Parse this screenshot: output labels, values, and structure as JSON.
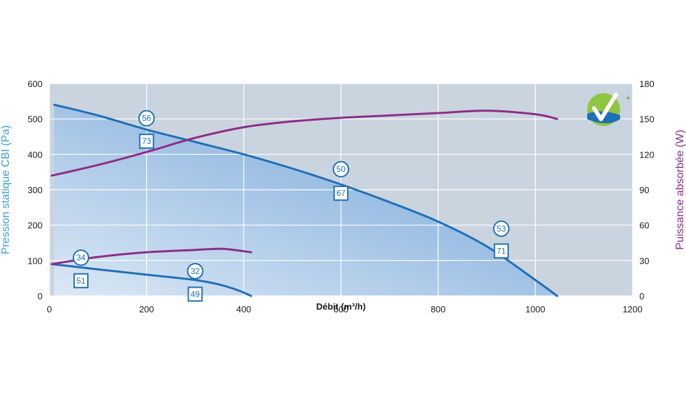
{
  "colors": {
    "pressure_axis": "#3a9fd6",
    "power_axis": "#8e2b86",
    "pressure_curve": "#1f6fb5",
    "power_curve": "#8e2b86",
    "fill_light": "#dbe8f5",
    "fill_dark": "#6b9fd6",
    "grid": "#ffffff",
    "badge": "#1f6fb5",
    "logo_green": "#5aa83a",
    "logo_blue": "#1f6fb5"
  },
  "icons": {
    "logo": "green-check-certification-logo"
  },
  "chart_data": {
    "type": "line",
    "xlabel": "Débit (m³/h)",
    "ylabel_left": "Pression statique CBI (Pa)",
    "ylabel_right": "Puissance absorbée (W)",
    "xlim": [
      0,
      1200
    ],
    "ylim_left": [
      0,
      600
    ],
    "ylim_right": [
      0,
      180
    ],
    "x_ticks": [
      "0",
      "200",
      "400",
      "600",
      "800",
      "1000",
      "1200"
    ],
    "y_left_ticks": [
      "0",
      "100",
      "200",
      "300",
      "400",
      "500",
      "600"
    ],
    "y_right_ticks": [
      "0",
      "30",
      "60",
      "90",
      "120",
      "150",
      "180"
    ],
    "grid": true,
    "series": [
      {
        "axis": "left",
        "kind": "pressure",
        "points": [
          [
            10,
            540
          ],
          [
            100,
            510
          ],
          [
            200,
            470
          ],
          [
            300,
            435
          ],
          [
            400,
            400
          ],
          [
            500,
            360
          ],
          [
            600,
            315
          ],
          [
            700,
            265
          ],
          [
            800,
            210
          ],
          [
            900,
            140
          ],
          [
            1000,
            45
          ],
          [
            1045,
            0
          ]
        ]
      },
      {
        "axis": "left",
        "kind": "pressure",
        "points": [
          [
            5,
            90
          ],
          [
            100,
            75
          ],
          [
            200,
            60
          ],
          [
            300,
            45
          ],
          [
            350,
            32
          ],
          [
            390,
            15
          ],
          [
            415,
            0
          ]
        ]
      },
      {
        "axis": "right",
        "kind": "power",
        "points": [
          [
            5,
            102
          ],
          [
            100,
            111
          ],
          [
            200,
            122
          ],
          [
            300,
            134
          ],
          [
            400,
            143
          ],
          [
            500,
            148
          ],
          [
            600,
            151
          ],
          [
            700,
            153
          ],
          [
            800,
            155
          ],
          [
            900,
            157
          ],
          [
            1000,
            154
          ],
          [
            1045,
            150
          ]
        ]
      },
      {
        "axis": "right",
        "kind": "power",
        "points": [
          [
            5,
            27
          ],
          [
            100,
            33
          ],
          [
            200,
            37
          ],
          [
            300,
            39
          ],
          [
            350,
            40
          ],
          [
            380,
            39
          ],
          [
            415,
            37
          ]
        ]
      }
    ],
    "annotations": [
      {
        "shape": "circle",
        "text": "56",
        "x": 200,
        "y": 502
      },
      {
        "shape": "square",
        "text": "73",
        "x": 200,
        "y": 437
      },
      {
        "shape": "circle",
        "text": "50",
        "x": 600,
        "y": 358
      },
      {
        "shape": "square",
        "text": "67",
        "x": 600,
        "y": 290
      },
      {
        "shape": "circle",
        "text": "53",
        "x": 930,
        "y": 190
      },
      {
        "shape": "square",
        "text": "71",
        "x": 930,
        "y": 127
      },
      {
        "shape": "circle",
        "text": "34",
        "x": 65,
        "y": 108
      },
      {
        "shape": "square",
        "text": "51",
        "x": 65,
        "y": 43
      },
      {
        "shape": "circle",
        "text": "32",
        "x": 300,
        "y": 70
      },
      {
        "shape": "square",
        "text": "49",
        "x": 300,
        "y": 5
      }
    ]
  }
}
